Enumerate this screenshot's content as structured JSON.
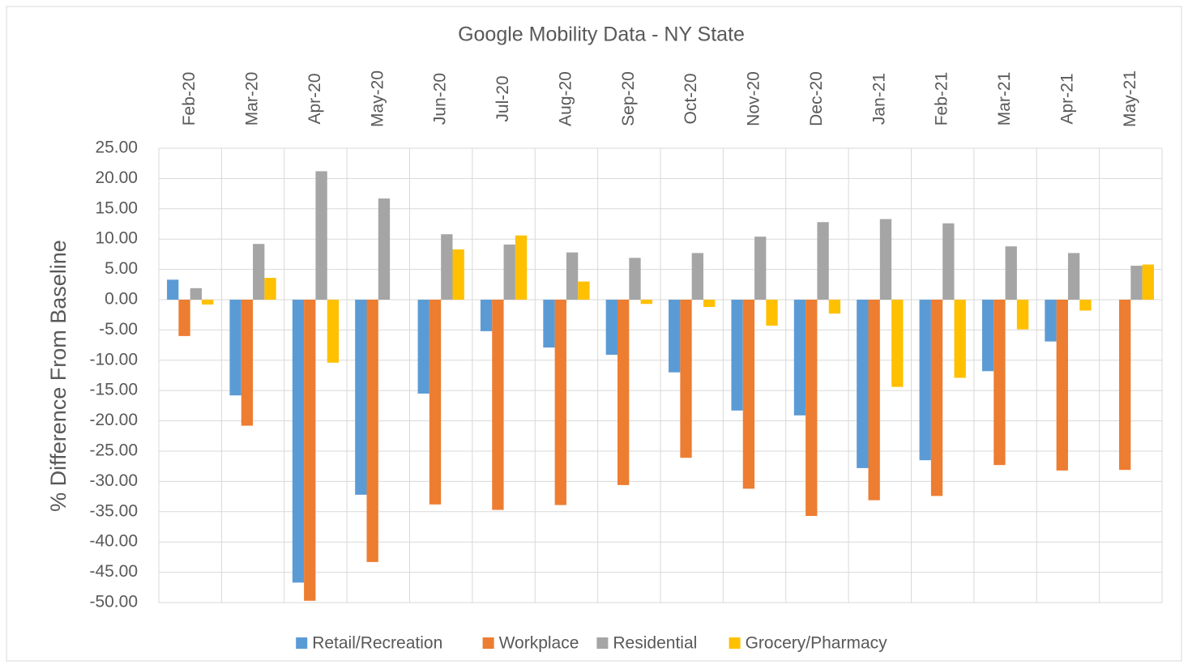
{
  "chart_data": {
    "type": "bar",
    "title": "Google Mobility Data - NY State",
    "y_label": "% Difference From Baseline",
    "categories": [
      "Feb-20",
      "Mar-20",
      "Apr-20",
      "May-20",
      "Jun-20",
      "Jul-20",
      "Aug-20",
      "Sep-20",
      "Oct-20",
      "Nov-20",
      "Dec-20",
      "Jan-21",
      "Feb-21",
      "Mar-21",
      "Apr-21",
      "May-21"
    ],
    "series": [
      {
        "name": "Retail/Recreation",
        "color": "#5b9bd5",
        "values": [
          3.3,
          -15.8,
          -46.7,
          -32.2,
          -15.5,
          -5.2,
          -7.9,
          -9.1,
          -12.0,
          -18.3,
          -19.1,
          -27.8,
          -26.5,
          -11.8,
          -6.9,
          0
        ]
      },
      {
        "name": "Workplace",
        "color": "#ed7d31",
        "values": [
          -6.0,
          -20.8,
          -49.7,
          -43.3,
          -33.8,
          -34.7,
          -33.9,
          -30.6,
          -26.1,
          -31.2,
          -35.7,
          -33.1,
          -32.4,
          -27.3,
          -28.2,
          -28.1
        ]
      },
      {
        "name": "Residential",
        "color": "#a5a5a5",
        "values": [
          1.9,
          9.2,
          21.2,
          16.7,
          10.8,
          9.1,
          7.8,
          6.9,
          7.7,
          10.4,
          12.8,
          13.3,
          12.6,
          8.8,
          7.7,
          5.6
        ]
      },
      {
        "name": "Grocery/Pharmacy",
        "color": "#ffc000",
        "values": [
          -0.8,
          3.6,
          -10.4,
          0,
          8.3,
          10.6,
          3.0,
          -0.7,
          -1.2,
          -4.3,
          -2.3,
          -14.4,
          -12.9,
          -4.9,
          -1.8,
          5.8
        ]
      }
    ],
    "ylim": [
      -50,
      25
    ],
    "yticks": [
      {
        "value": 25,
        "label": "25.00"
      },
      {
        "value": 20,
        "label": "20.00"
      },
      {
        "value": 15,
        "label": "15.00"
      },
      {
        "value": 10,
        "label": "10.00"
      },
      {
        "value": 5,
        "label": "5.00"
      },
      {
        "value": 0,
        "label": "0.00"
      },
      {
        "value": -5,
        "label": "-5.00"
      },
      {
        "value": -10,
        "label": "-10.00"
      },
      {
        "value": -15,
        "label": "-15.00"
      },
      {
        "value": -20,
        "label": "-20.00"
      },
      {
        "value": -25,
        "label": "-25.00"
      },
      {
        "value": -30,
        "label": "-30.00"
      },
      {
        "value": -35,
        "label": "-35.00"
      },
      {
        "value": -40,
        "label": "-40.00"
      },
      {
        "value": -45,
        "label": "-45.00"
      },
      {
        "value": -50,
        "label": "-50.00"
      }
    ],
    "grid": true,
    "legend": "bottom"
  }
}
